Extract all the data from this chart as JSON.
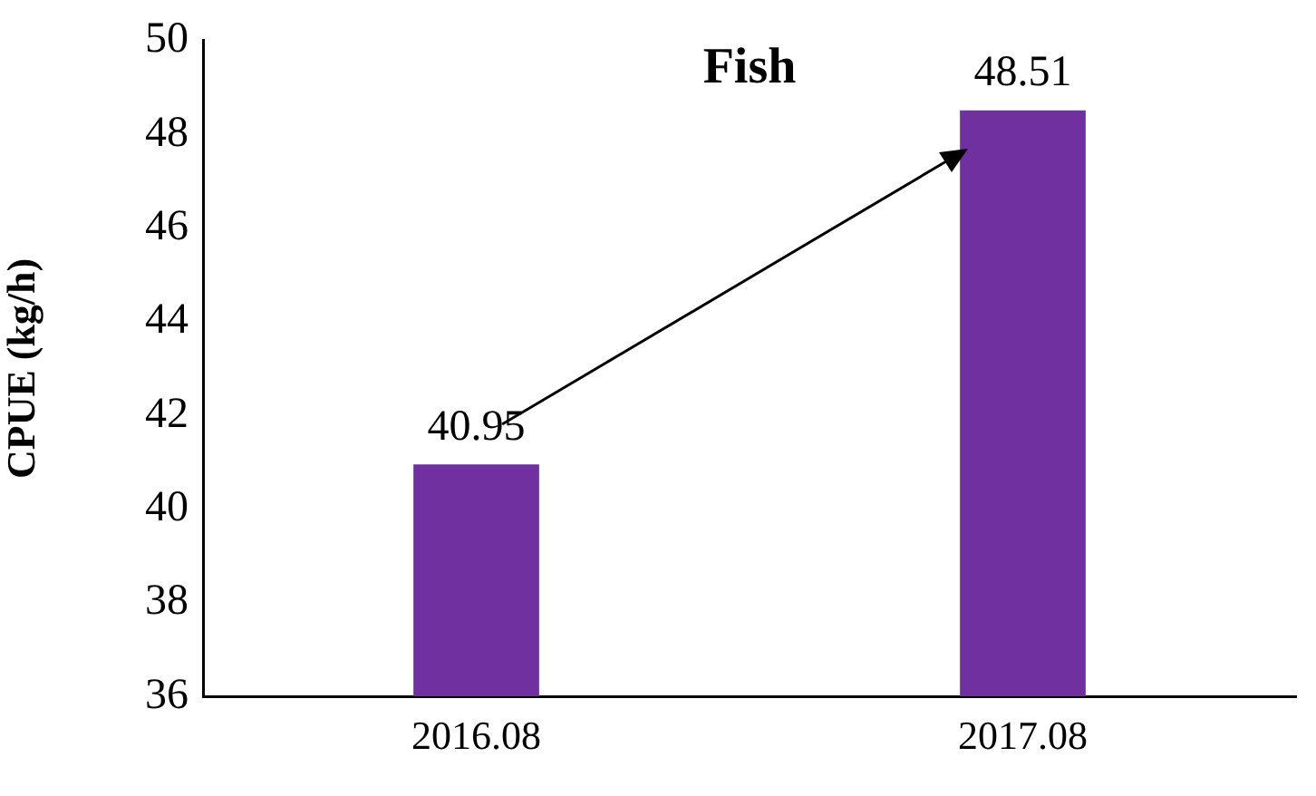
{
  "chart_data": {
    "type": "bar",
    "title": "Fish",
    "ylabel": "CPUE (kg/h)",
    "categories": [
      "2016.08",
      "2017.08"
    ],
    "series": [
      {
        "color": "#7030a0",
        "values": [
          40.95,
          48.51
        ]
      }
    ],
    "ylim": [
      36,
      50
    ],
    "yticks": [
      36,
      38,
      40,
      42,
      44,
      46,
      48,
      50
    ],
    "grid": false,
    "legend": false,
    "data_labels": true
  }
}
